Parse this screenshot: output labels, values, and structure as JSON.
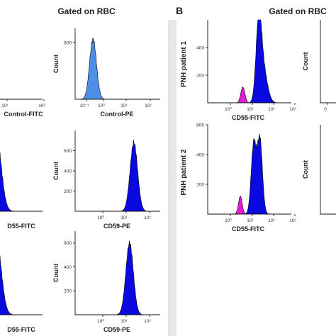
{
  "figure": {
    "header_left": "Gated on RBC",
    "header_right": "Gated on RBC",
    "panel_letter": "B",
    "colors": {
      "normal": "#0a0ae0",
      "deficient": "#e21bd2",
      "control": "#4f8fe8",
      "control_low": "#e11b7a",
      "outline": "#000000",
      "separator": "#e6e6e6"
    }
  },
  "chart_data": [
    {
      "id": "A-control-fitc",
      "type": "area",
      "xlabel": "Control-FITC",
      "ylabel": "",
      "x_scale": "log",
      "xlim": [
        0.01,
        1000
      ],
      "x_ticks": [
        "10¹",
        "10²"
      ],
      "y_ticks": [],
      "ylim": [
        0,
        1000
      ],
      "series": []
    },
    {
      "id": "A-control-pe",
      "type": "area",
      "xlabel": "Control-PE",
      "ylabel": "Count",
      "x_scale": "log",
      "xlim": [
        0.01,
        1000
      ],
      "x_ticks": [
        "10⁻¹",
        "10⁰",
        "10¹",
        "10²"
      ],
      "ylim": [
        0,
        1000
      ],
      "y_ticks": [
        "800"
      ],
      "series": [
        {
          "color": "control",
          "peaks": [
            {
              "center": -0.95,
              "width": 0.2,
              "height": 850
            }
          ]
        }
      ]
    },
    {
      "id": "A-cd55-fitc-1",
      "type": "area",
      "xlabel": "D55-FITC",
      "ylabel": "",
      "x_scale": "log",
      "xlim": [
        0.01,
        1000
      ],
      "x_ticks": [],
      "ylim": [
        0,
        800
      ],
      "y_ticks": [],
      "series": [
        {
          "color": "normal",
          "peaks": [
            {
              "center": 0.3,
              "width": 0.28,
              "height": 720
            }
          ]
        }
      ]
    },
    {
      "id": "A-cd59-pe-1",
      "type": "area",
      "xlabel": "CD59-PE",
      "ylabel": "Count",
      "x_scale": "log",
      "xlim": [
        0.01,
        1000
      ],
      "x_ticks": [
        "10⁰",
        "10¹",
        "10²"
      ],
      "ylim": [
        0,
        800
      ],
      "y_ticks": [
        "600",
        "400",
        "200"
      ],
      "series": [
        {
          "color": "normal",
          "peaks": [
            {
              "center": 1.45,
              "width": 0.22,
              "height": 680
            }
          ]
        }
      ]
    },
    {
      "id": "A-cd55-fitc-2",
      "type": "area",
      "xlabel": "D55-FITC",
      "ylabel": "",
      "x_scale": "log",
      "xlim": [
        0.01,
        1000
      ],
      "x_ticks": [],
      "ylim": [
        0,
        800
      ],
      "y_ticks": [],
      "series": [
        {
          "color": "normal",
          "peaks": [
            {
              "center": 0.3,
              "width": 0.28,
              "height": 700
            }
          ]
        }
      ]
    },
    {
      "id": "A-cd59-pe-2",
      "type": "area",
      "xlabel": "CD59-PE",
      "ylabel": "Count",
      "x_scale": "log",
      "xlim": [
        0.01,
        1000
      ],
      "x_ticks": [
        "10⁰",
        "10¹",
        "10²"
      ],
      "ylim": [
        0,
        700
      ],
      "y_ticks": [
        "600",
        "400",
        "200"
      ],
      "series": [
        {
          "color": "normal",
          "peaks": [
            {
              "center": 1.2,
              "width": 0.22,
              "height": 600
            }
          ]
        }
      ]
    },
    {
      "id": "B-pnh1-cd55",
      "type": "area",
      "panel_title": "PNH patient 1",
      "xlabel": "CD55-FITC",
      "ylabel": "",
      "x_scale": "log",
      "xlim": [
        0.01,
        1000
      ],
      "x_ticks": [
        "10⁰",
        "10¹",
        "10²",
        "10³"
      ],
      "ylim": [
        0,
        600
      ],
      "y_ticks": [
        "400",
        "200"
      ],
      "series": [
        {
          "color": "deficient",
          "peaks": [
            {
              "center": 0.1,
              "width": 0.12,
              "height": 115
            }
          ]
        },
        {
          "color": "normal",
          "peaks": [
            {
              "center": 1.05,
              "width": 0.16,
              "height": 520
            },
            {
              "center": 1.3,
              "width": 0.25,
              "height": 250
            }
          ]
        }
      ]
    },
    {
      "id": "B-pnh1-right",
      "type": "area",
      "xlabel": "",
      "ylabel": "Count",
      "x_scale": "log",
      "xlim": [
        0.01,
        1000
      ],
      "x_ticks": [
        "0"
      ],
      "ylim": [
        0,
        600
      ],
      "y_ticks": [],
      "series": []
    },
    {
      "id": "B-pnh2-cd55",
      "type": "area",
      "panel_title": "PNH patient 2",
      "xlabel": "CD55-FITC",
      "ylabel": "",
      "x_scale": "log",
      "xlim": [
        0.01,
        1000
      ],
      "x_ticks": [
        "10⁰",
        "10¹",
        "10²",
        "10³"
      ],
      "ylim": [
        0,
        600
      ],
      "y_ticks": [
        "600",
        "400",
        "200"
      ],
      "series": [
        {
          "color": "deficient",
          "peaks": [
            {
              "center": -0.05,
              "width": 0.11,
              "height": 120
            }
          ]
        },
        {
          "color": "normal",
          "peaks": [
            {
              "center": 0.75,
              "width": 0.15,
              "height": 470
            },
            {
              "center": 1.12,
              "width": 0.15,
              "height": 500
            }
          ]
        }
      ]
    },
    {
      "id": "B-pnh2-right",
      "type": "area",
      "xlabel": "",
      "ylabel": "Count",
      "x_scale": "log",
      "xlim": [
        0.01,
        1000
      ],
      "x_ticks": [],
      "ylim": [
        0,
        600
      ],
      "y_ticks": [],
      "series": []
    }
  ]
}
